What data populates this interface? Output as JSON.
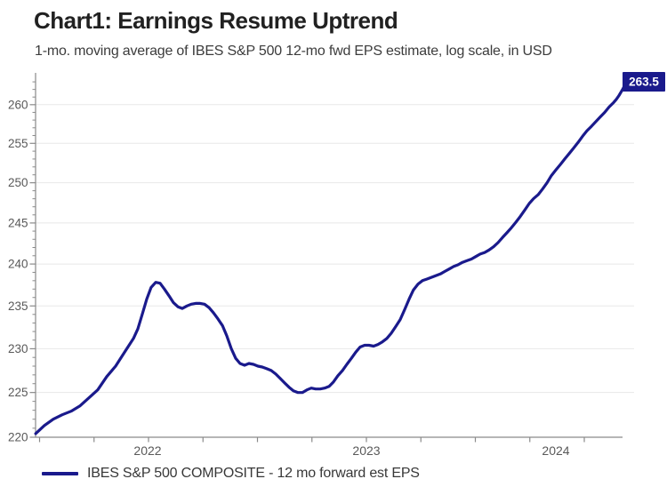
{
  "header": {
    "title": "Chart1: Earnings Resume Uptrend",
    "subtitle": "1-mo. moving average of IBES S&P 500 12-mo fwd EPS estimate, log scale, in USD"
  },
  "legend": {
    "label": "IBES S&P 500 COMPOSITE - 12 mo forward est EPS"
  },
  "colors": {
    "line": "#1a1a8c",
    "badge_bg": "#1a1a8c",
    "badge_text": "#ffffff",
    "grid": "#e8e8e8",
    "axis": "#8a8a8a",
    "tick_label": "#595959",
    "title": "#212121",
    "subtitle": "#3c3c3c"
  },
  "chart_data": {
    "type": "line",
    "title": "Chart1: Earnings Resume Uptrend",
    "subtitle": "1-mo. moving average of IBES S&P 500 12-mo fwd EPS estimate, log scale, in USD",
    "xlabel": "",
    "ylabel": "",
    "log_scale": true,
    "grid": "horizontal-only",
    "legend_position": "bottom-left",
    "x_range": [
      2021.47,
      2024.235
    ],
    "y_range": [
      220,
      264.3
    ],
    "y_ticks": [
      220,
      225,
      230,
      235,
      240,
      245,
      250,
      255,
      260
    ],
    "y_minor_tick_step": 1,
    "x_tick_start": 2021.5,
    "x_tick_end": 2024.0,
    "x_tick_step": 0.25,
    "x_tick_labels": [
      {
        "label": "2022",
        "px": 166
      },
      {
        "label": "2023",
        "px": 412
      },
      {
        "label": "2024",
        "px": 625
      }
    ],
    "last_value_label": "263.5",
    "series": [
      {
        "name": "IBES S&P 500 COMPOSITE - 12 mo forward est EPS",
        "color": "#1a1a8c",
        "points": [
          [
            2021.482,
            220.4
          ],
          [
            2021.522,
            221.3
          ],
          [
            2021.563,
            222.0
          ],
          [
            2021.604,
            222.5
          ],
          [
            2021.645,
            222.9
          ],
          [
            2021.686,
            223.5
          ],
          [
            2021.727,
            224.4
          ],
          [
            2021.767,
            225.3
          ],
          [
            2021.808,
            226.8
          ],
          [
            2021.849,
            228.0
          ],
          [
            2021.89,
            229.6
          ],
          [
            2021.931,
            231.2
          ],
          [
            2021.951,
            232.3
          ],
          [
            2021.971,
            234.0
          ],
          [
            2021.992,
            235.8
          ],
          [
            2022.012,
            237.2
          ],
          [
            2022.033,
            237.8
          ],
          [
            2022.053,
            237.7
          ],
          [
            2022.073,
            237.0
          ],
          [
            2022.094,
            236.2
          ],
          [
            2022.114,
            235.4
          ],
          [
            2022.135,
            234.9
          ],
          [
            2022.155,
            234.7
          ],
          [
            2022.176,
            235.0
          ],
          [
            2022.196,
            235.2
          ],
          [
            2022.216,
            235.3
          ],
          [
            2022.237,
            235.3
          ],
          [
            2022.257,
            235.2
          ],
          [
            2022.278,
            234.8
          ],
          [
            2022.298,
            234.2
          ],
          [
            2022.318,
            233.5
          ],
          [
            2022.339,
            232.7
          ],
          [
            2022.359,
            231.5
          ],
          [
            2022.38,
            230.0
          ],
          [
            2022.4,
            228.9
          ],
          [
            2022.42,
            228.3
          ],
          [
            2022.441,
            228.1
          ],
          [
            2022.461,
            228.3
          ],
          [
            2022.482,
            228.2
          ],
          [
            2022.502,
            228.0
          ],
          [
            2022.522,
            227.9
          ],
          [
            2022.543,
            227.7
          ],
          [
            2022.563,
            227.5
          ],
          [
            2022.584,
            227.1
          ],
          [
            2022.604,
            226.6
          ],
          [
            2022.624,
            226.1
          ],
          [
            2022.645,
            225.6
          ],
          [
            2022.665,
            225.2
          ],
          [
            2022.686,
            225.0
          ],
          [
            2022.706,
            225.0
          ],
          [
            2022.727,
            225.3
          ],
          [
            2022.747,
            225.5
          ],
          [
            2022.767,
            225.4
          ],
          [
            2022.788,
            225.4
          ],
          [
            2022.808,
            225.5
          ],
          [
            2022.829,
            225.7
          ],
          [
            2022.849,
            226.2
          ],
          [
            2022.869,
            226.9
          ],
          [
            2022.89,
            227.5
          ],
          [
            2022.91,
            228.2
          ],
          [
            2022.931,
            228.9
          ],
          [
            2022.951,
            229.6
          ],
          [
            2022.971,
            230.2
          ],
          [
            2022.992,
            230.4
          ],
          [
            2023.012,
            230.4
          ],
          [
            2023.033,
            230.3
          ],
          [
            2023.053,
            230.5
          ],
          [
            2023.073,
            230.8
          ],
          [
            2023.094,
            231.2
          ],
          [
            2023.114,
            231.8
          ],
          [
            2023.135,
            232.6
          ],
          [
            2023.155,
            233.4
          ],
          [
            2023.176,
            234.6
          ],
          [
            2023.196,
            235.8
          ],
          [
            2023.216,
            236.9
          ],
          [
            2023.237,
            237.6
          ],
          [
            2023.257,
            238.0
          ],
          [
            2023.278,
            238.2
          ],
          [
            2023.298,
            238.4
          ],
          [
            2023.318,
            238.6
          ],
          [
            2023.339,
            238.8
          ],
          [
            2023.359,
            239.1
          ],
          [
            2023.38,
            239.4
          ],
          [
            2023.4,
            239.7
          ],
          [
            2023.42,
            239.9
          ],
          [
            2023.441,
            240.2
          ],
          [
            2023.461,
            240.4
          ],
          [
            2023.482,
            240.6
          ],
          [
            2023.502,
            240.9
          ],
          [
            2023.522,
            241.2
          ],
          [
            2023.543,
            241.4
          ],
          [
            2023.563,
            241.7
          ],
          [
            2023.584,
            242.1
          ],
          [
            2023.604,
            242.6
          ],
          [
            2023.624,
            243.2
          ],
          [
            2023.645,
            243.8
          ],
          [
            2023.665,
            244.4
          ],
          [
            2023.686,
            245.1
          ],
          [
            2023.706,
            245.8
          ],
          [
            2023.727,
            246.6
          ],
          [
            2023.747,
            247.4
          ],
          [
            2023.767,
            248.0
          ],
          [
            2023.788,
            248.5
          ],
          [
            2023.808,
            249.2
          ],
          [
            2023.829,
            250.0
          ],
          [
            2023.849,
            250.9
          ],
          [
            2023.869,
            251.6
          ],
          [
            2023.89,
            252.3
          ],
          [
            2023.91,
            253.0
          ],
          [
            2023.931,
            253.7
          ],
          [
            2023.951,
            254.4
          ],
          [
            2023.971,
            255.1
          ],
          [
            2023.992,
            255.9
          ],
          [
            2024.012,
            256.6
          ],
          [
            2024.033,
            257.2
          ],
          [
            2024.053,
            257.8
          ],
          [
            2024.073,
            258.4
          ],
          [
            2024.094,
            259.0
          ],
          [
            2024.114,
            259.7
          ],
          [
            2024.135,
            260.3
          ],
          [
            2024.147,
            260.7
          ],
          [
            2024.159,
            261.2
          ],
          [
            2024.176,
            262.0
          ],
          [
            2024.188,
            262.7
          ],
          [
            2024.2,
            263.5
          ]
        ]
      }
    ]
  }
}
